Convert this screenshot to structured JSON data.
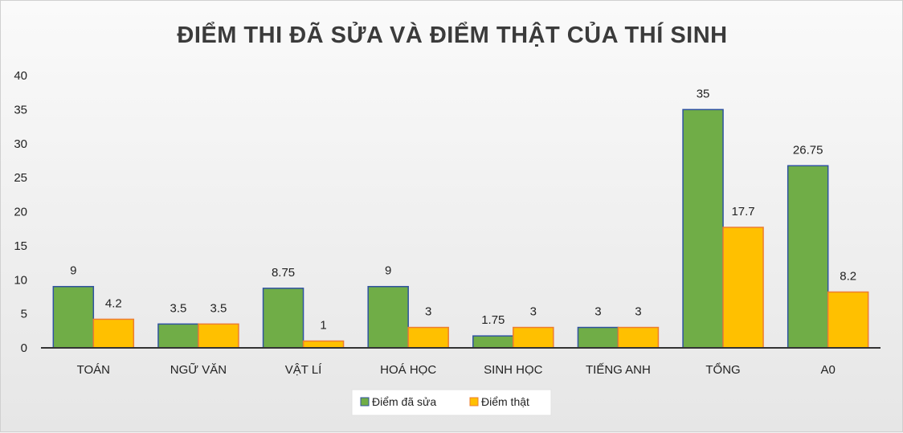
{
  "chart_data": {
    "type": "bar",
    "title": "ĐIỂM THI ĐÃ SỬA VÀ ĐIỂM THẬT CỦA THÍ SINH",
    "categories": [
      "TOÁN",
      "NGỮ VĂN",
      "VẬT LÍ",
      "HOÁ HỌC",
      "SINH HỌC",
      "TIẾNG ANH",
      "TỔNG",
      "A0"
    ],
    "series": [
      {
        "name": "Điểm đã sửa",
        "values": [
          9,
          3.5,
          8.75,
          9,
          1.75,
          3,
          35,
          26.75
        ],
        "labels": [
          "9",
          "3.5",
          "8.75",
          "9",
          "1.75",
          "3",
          "35",
          "26.75"
        ],
        "color": "#70ad47",
        "stroke": "#2f52a0"
      },
      {
        "name": "Điểm thật",
        "values": [
          4.2,
          3.5,
          1,
          3,
          3,
          3,
          17.7,
          8.2
        ],
        "labels": [
          "4.2",
          "3.5",
          "1",
          "3",
          "3",
          "3",
          "17.7",
          "8.2"
        ],
        "color": "#ffc000",
        "stroke": "#ed7d31"
      }
    ],
    "ylim": [
      0,
      40
    ],
    "yticks": [
      "0",
      "5",
      "10",
      "15",
      "20",
      "25",
      "30",
      "35",
      "40"
    ],
    "grid": false,
    "legend": "bottom"
  }
}
